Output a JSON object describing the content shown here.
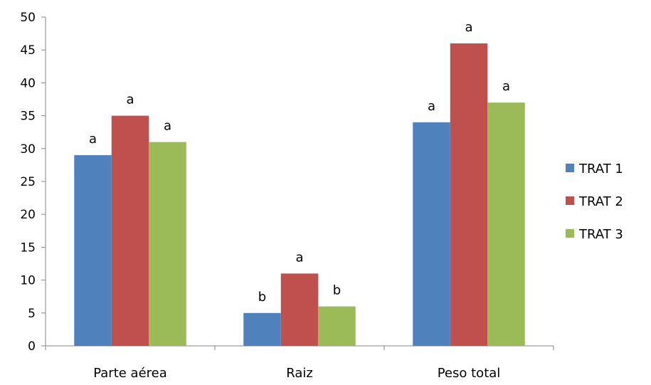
{
  "chart_data": {
    "type": "bar",
    "categories": [
      "Parte aérea",
      "Raiz",
      "Peso total"
    ],
    "series": [
      {
        "name": "TRAT 1",
        "color": "#4F81BD",
        "values": [
          29,
          5,
          34
        ],
        "labels": [
          "a",
          "b",
          "a"
        ]
      },
      {
        "name": "TRAT 2",
        "color": "#C0504D",
        "values": [
          35,
          11,
          46
        ],
        "labels": [
          "a",
          "a",
          "a"
        ]
      },
      {
        "name": "TRAT 3",
        "color": "#9BBB59",
        "values": [
          31,
          6,
          37
        ],
        "labels": [
          "a",
          "b",
          "a"
        ]
      }
    ],
    "title": "",
    "xlabel": "",
    "ylabel": "",
    "ylim": [
      0,
      50
    ],
    "yticks": [
      0,
      5,
      10,
      15,
      20,
      25,
      30,
      35,
      40,
      45,
      50
    ],
    "grid": false,
    "legend_position": "right"
  }
}
